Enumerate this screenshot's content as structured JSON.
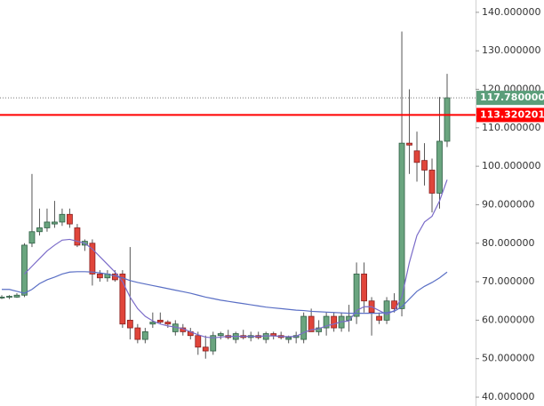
{
  "chart_data": {
    "type": "candlestick",
    "ylim": [
      37.7,
      143.2
    ],
    "yticks": [
      {
        "value": 40,
        "label": "40.000000"
      },
      {
        "value": 50,
        "label": "50.000000"
      },
      {
        "value": 60,
        "label": "60.000000"
      },
      {
        "value": 70,
        "label": "70.000000"
      },
      {
        "value": 80,
        "label": "80.000000"
      },
      {
        "value": 90,
        "label": "90.000000"
      },
      {
        "value": 100,
        "label": "100.000000"
      },
      {
        "value": 110,
        "label": "110.000000"
      },
      {
        "value": 120,
        "label": "120.000000"
      },
      {
        "value": 130,
        "label": "130.000000"
      },
      {
        "value": 140,
        "label": "140.000000"
      }
    ],
    "up_color": "#6aa57f",
    "down_color": "#e0453a",
    "open": [
      66,
      66,
      66,
      66.5,
      80,
      83,
      84,
      85,
      85.5,
      87.5,
      84,
      79.5,
      80,
      72,
      71,
      72,
      72,
      60,
      58,
      55,
      59,
      60,
      59.5,
      57,
      58,
      57,
      56,
      53,
      52,
      56,
      56,
      55,
      56,
      55.5,
      56,
      55,
      56.5,
      56,
      55,
      55.5,
      55,
      61,
      57,
      58,
      61,
      58,
      60,
      61,
      72,
      65,
      61,
      60,
      65,
      63,
      106,
      104,
      101.5,
      99,
      93,
      106.5
    ],
    "high": [
      66.5,
      66.5,
      67,
      80,
      98,
      89,
      89,
      91,
      89,
      89,
      85,
      81,
      81,
      73,
      73,
      73,
      73,
      79,
      59,
      58,
      62,
      62,
      60,
      60,
      59,
      58,
      57,
      56,
      57,
      57,
      57.5,
      57,
      57.5,
      57,
      57,
      57,
      57,
      57,
      56,
      57,
      62,
      63,
      60,
      62,
      62,
      62,
      64,
      75,
      75,
      66,
      62,
      66,
      67,
      135,
      120,
      109,
      106,
      102,
      118,
      124
    ],
    "low": [
      65.5,
      65.5,
      65.8,
      66,
      79,
      82,
      83,
      84,
      84.5,
      84,
      79,
      78,
      69,
      70,
      70,
      70,
      58,
      55,
      54,
      54,
      58,
      59,
      58,
      56,
      56,
      55,
      51,
      50,
      51,
      55,
      55,
      54,
      55,
      54.5,
      55,
      54,
      55,
      55,
      54,
      54,
      54,
      57,
      56,
      56,
      57,
      57,
      57,
      59,
      62,
      56,
      59,
      59,
      62,
      61,
      98,
      96,
      95,
      88,
      89,
      105
    ],
    "close": [
      66,
      66.2,
      66.5,
      79.5,
      83,
      84,
      85.5,
      85.5,
      87.5,
      85,
      79.5,
      80.5,
      72,
      71,
      72,
      70.5,
      59,
      58,
      55,
      57,
      59.5,
      59.5,
      59,
      59,
      57,
      56,
      53,
      52,
      56,
      56.5,
      55.5,
      56.5,
      55.5,
      56,
      55.5,
      56.5,
      56,
      55.5,
      55.5,
      56,
      61,
      57,
      58,
      61,
      58,
      61,
      61,
      72,
      65,
      62,
      60,
      65,
      63,
      106,
      105.5,
      101,
      99,
      93,
      106.5,
      117.78
    ],
    "ma_series": [
      {
        "color": "#7b6cc9",
        "values": [
          null,
          null,
          null,
          72,
          74,
          76,
          78,
          79.5,
          80.8,
          81,
          80.5,
          80,
          78.5,
          76.5,
          74.5,
          72.5,
          70,
          66,
          63,
          61,
          59.8,
          59,
          58.5,
          58.2,
          57.8,
          57,
          56.2,
          55.6,
          55.4,
          55.6,
          55.8,
          55.8,
          55.8,
          55.8,
          55.8,
          55.9,
          55.9,
          55.8,
          55.7,
          55.8,
          56.8,
          57.5,
          57.8,
          58.5,
          59,
          59.6,
          59.8,
          62.5,
          63.5,
          63.5,
          62.5,
          61.5,
          62.5,
          66,
          75,
          82,
          85.5,
          87,
          91,
          96.5
        ]
      },
      {
        "color": "#5a6fc5",
        "values": [
          68,
          68,
          67.5,
          67,
          68,
          69.5,
          70.5,
          71.2,
          72,
          72.5,
          72.6,
          72.6,
          72.5,
          72.3,
          72,
          71.5,
          71,
          70.3,
          69.8,
          69.4,
          69,
          68.6,
          68.2,
          67.8,
          67.4,
          67,
          66.5,
          66,
          65.6,
          65.2,
          64.9,
          64.6,
          64.3,
          64,
          63.7,
          63.4,
          63.2,
          63,
          62.8,
          62.6,
          62.5,
          62.3,
          62.2,
          62.1,
          62,
          61.9,
          61.8,
          61.8,
          61.8,
          61.8,
          61.8,
          62,
          62.3,
          63.5,
          65.5,
          67.5,
          68.8,
          69.8,
          71,
          72.5
        ]
      }
    ],
    "last_price": {
      "value": 117.78,
      "label": "117.780000",
      "color": "#5b9e7a"
    },
    "price_line": {
      "value": 113.320201,
      "label": "113.320201",
      "color": "#ff0000"
    }
  }
}
